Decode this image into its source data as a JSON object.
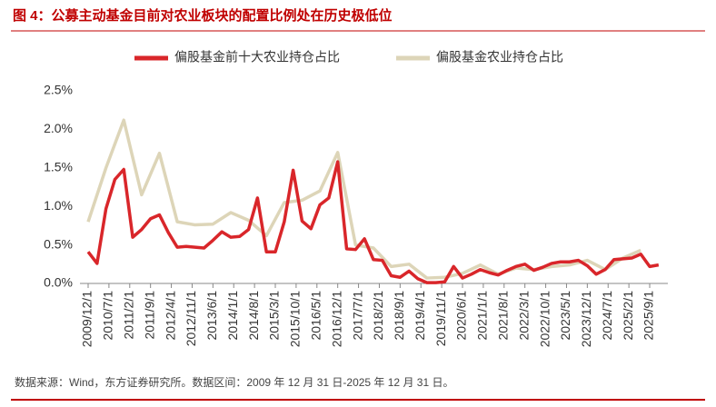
{
  "chart_data": {
    "type": "line",
    "title": "图 4：公募主动基金目前对农业板块的配置比例处在历史极低位",
    "source": "数据来源：Wind，东方证券研究所。数据区间：2009 年 12 月 31 日-2025 年 12 月 31 日。",
    "legend": "top",
    "grid": false,
    "xlim": [
      0,
      192
    ],
    "xticks": [
      {
        "value": 0,
        "label": "2009/12/1"
      },
      {
        "value": 7,
        "label": "2010/7/1"
      },
      {
        "value": 14,
        "label": "2011/2/1"
      },
      {
        "value": 21,
        "label": "2011/9/1"
      },
      {
        "value": 28,
        "label": "2012/4/1"
      },
      {
        "value": 35,
        "label": "2012/11/1"
      },
      {
        "value": 42,
        "label": "2013/6/1"
      },
      {
        "value": 49,
        "label": "2014/1/1"
      },
      {
        "value": 56,
        "label": "2014/8/1"
      },
      {
        "value": 63,
        "label": "2015/3/1"
      },
      {
        "value": 70,
        "label": "2015/10/1"
      },
      {
        "value": 77,
        "label": "2016/5/1"
      },
      {
        "value": 84,
        "label": "2016/12/1"
      },
      {
        "value": 91,
        "label": "2017/7/1"
      },
      {
        "value": 98,
        "label": "2018/2/1"
      },
      {
        "value": 105,
        "label": "2018/9/1"
      },
      {
        "value": 112,
        "label": "2019/4/1"
      },
      {
        "value": 119,
        "label": "2019/11/1"
      },
      {
        "value": 126,
        "label": "2020/6/1"
      },
      {
        "value": 133,
        "label": "2021/1/1"
      },
      {
        "value": 140,
        "label": "2021/8/1"
      },
      {
        "value": 147,
        "label": "2022/3/1"
      },
      {
        "value": 154,
        "label": "2022/10/1"
      },
      {
        "value": 161,
        "label": "2023/5/1"
      },
      {
        "value": 168,
        "label": "2023/12/1"
      },
      {
        "value": 175,
        "label": "2024/7/1"
      },
      {
        "value": 182,
        "label": "2025/2/1"
      },
      {
        "value": 189,
        "label": "2025/9/1"
      }
    ],
    "ylim": [
      0,
      2.5
    ],
    "yticks": [
      {
        "value": 0,
        "label": "0.0%"
      },
      {
        "value": 0.5,
        "label": "0.5%"
      },
      {
        "value": 1,
        "label": "1.0%"
      },
      {
        "value": 1.5,
        "label": "1.5%"
      },
      {
        "value": 2,
        "label": "2.0%"
      },
      {
        "value": 2.5,
        "label": "2.5%"
      }
    ],
    "series": [
      {
        "name": "偏股基金前十大农业持仓占比",
        "color": "#d9262a",
        "x": [
          0,
          3,
          6,
          9,
          12,
          15,
          18,
          21,
          24,
          27,
          30,
          33,
          36,
          39,
          42,
          45,
          48,
          51,
          54,
          57,
          60,
          63,
          66,
          69,
          72,
          75,
          78,
          81,
          84,
          87,
          90,
          93,
          96,
          99,
          102,
          105,
          108,
          111,
          114,
          117,
          120,
          123,
          126,
          129,
          132,
          135,
          138,
          141,
          144,
          147,
          150,
          153,
          156,
          159,
          162,
          165,
          168,
          171,
          174,
          177,
          180,
          183,
          186,
          189,
          192
        ],
        "values": [
          0.41,
          0.26,
          0.97,
          1.35,
          1.48,
          0.6,
          0.7,
          0.84,
          0.89,
          0.66,
          0.47,
          0.48,
          0.47,
          0.46,
          0.56,
          0.67,
          0.6,
          0.61,
          0.7,
          1.11,
          0.41,
          0.41,
          0.8,
          1.47,
          0.81,
          0.71,
          1.02,
          1.11,
          1.58,
          0.45,
          0.44,
          0.58,
          0.31,
          0.3,
          0.1,
          0.08,
          0.16,
          0.06,
          0.01,
          0.01,
          0.02,
          0.22,
          0.07,
          0.12,
          0.18,
          0.14,
          0.11,
          0.17,
          0.22,
          0.25,
          0.17,
          0.21,
          0.26,
          0.28,
          0.28,
          0.3,
          0.23,
          0.12,
          0.18,
          0.31,
          0.32,
          0.33,
          0.38,
          0.22,
          0.24
        ]
      },
      {
        "name": "偏股基金农业持仓占比",
        "color": "#ddd5b8",
        "x": [
          0,
          6,
          12,
          18,
          24,
          30,
          36,
          42,
          48,
          54,
          60,
          66,
          72,
          78,
          84,
          90,
          96,
          102,
          108,
          114,
          120,
          126,
          132,
          138,
          144,
          150,
          156,
          162,
          168,
          174,
          180,
          186
        ],
        "values": [
          0.8,
          1.5,
          2.12,
          1.15,
          1.69,
          0.8,
          0.76,
          0.77,
          0.92,
          0.82,
          0.62,
          1.05,
          1.08,
          1.2,
          1.7,
          0.5,
          0.46,
          0.22,
          0.25,
          0.07,
          0.08,
          0.13,
          0.24,
          0.12,
          0.2,
          0.18,
          0.22,
          0.24,
          0.3,
          0.18,
          0.33,
          0.43
        ]
      }
    ]
  }
}
